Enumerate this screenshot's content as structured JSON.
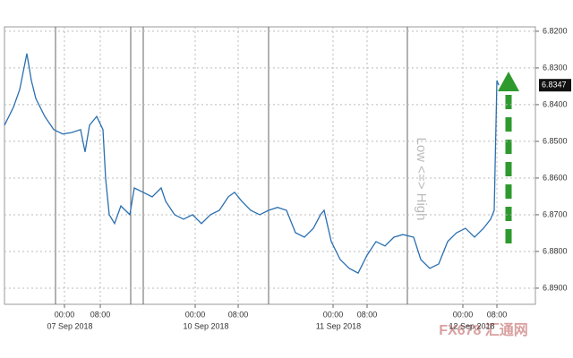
{
  "chart_data": {
    "type": "line",
    "y_inverted": true,
    "y_annotation": "Low <=> High",
    "watermark": "FX678 汇通网",
    "grid": true,
    "xlim": [
      0,
      118.6
    ],
    "ylim": [
      6.8188,
      6.8944
    ],
    "xticks": [
      {
        "value": 13.4,
        "label": "00:00"
      },
      {
        "value": 21.4,
        "label": "08:00"
      },
      {
        "value": 42.6,
        "label": "00:00"
      },
      {
        "value": 52.2,
        "label": "08:00"
      },
      {
        "value": 73.4,
        "label": "00:00"
      },
      {
        "value": 81,
        "label": "08:00"
      },
      {
        "value": 102.4,
        "label": "00:00"
      },
      {
        "value": 110,
        "label": "08:00"
      }
    ],
    "date_labels": [
      {
        "value": 14.6,
        "label": "07 Sep 2018"
      },
      {
        "value": 45,
        "label": "10 Sep 2018"
      },
      {
        "value": 74.6,
        "label": "11 Sep 2018"
      },
      {
        "value": 104.4,
        "label": "12 Sep 2018"
      }
    ],
    "yticks": [
      {
        "value": 6.82,
        "label": "6.8200"
      },
      {
        "value": 6.83,
        "label": "6.8300"
      },
      {
        "value": 6.84,
        "label": "6.8400"
      },
      {
        "value": 6.85,
        "label": "6.8500"
      },
      {
        "value": 6.86,
        "label": "6.8600"
      },
      {
        "value": 6.87,
        "label": "6.8700"
      },
      {
        "value": 6.88,
        "label": "6.8800"
      },
      {
        "value": 6.89,
        "label": "6.8900"
      }
    ],
    "last_value": {
      "value": 6.8347,
      "label": "6.8347"
    },
    "series": [
      {
        "color": "#2a6fb0",
        "x": [
          0,
          2,
          3.4,
          5,
          6,
          7,
          9,
          11,
          13,
          15,
          17,
          18,
          19,
          20.6,
          22,
          22.6,
          23.4,
          24.6,
          26,
          28,
          29,
          31,
          33,
          35,
          36,
          38,
          40,
          42,
          44,
          46,
          48,
          50,
          51.4,
          53,
          55,
          57,
          59,
          61,
          63,
          65,
          67,
          69,
          70.6,
          71.4,
          73,
          75,
          77,
          79,
          81,
          83,
          85,
          87,
          89,
          91.4,
          93,
          95,
          97,
          99,
          101,
          103,
          105,
          107,
          108.6,
          109.4,
          110,
          110.4
        ],
        "values": [
          6.8456,
          6.8407,
          6.8359,
          6.8261,
          6.8334,
          6.8383,
          6.8432,
          6.8468,
          6.848,
          6.8476,
          6.8468,
          6.8529,
          6.8456,
          6.8432,
          6.8468,
          6.8602,
          6.87,
          6.8724,
          6.8676,
          6.87,
          6.8627,
          6.8639,
          6.8651,
          6.8627,
          6.8663,
          6.87,
          6.8712,
          6.87,
          6.8724,
          6.87,
          6.8688,
          6.8651,
          6.8639,
          6.8663,
          6.8688,
          6.87,
          6.8688,
          6.868,
          6.8688,
          6.8749,
          6.8761,
          6.8737,
          6.87,
          6.8688,
          6.8773,
          6.8822,
          6.8846,
          6.8859,
          6.881,
          6.8773,
          6.8785,
          6.8761,
          6.8754,
          6.8761,
          6.8822,
          6.8846,
          6.8834,
          6.8773,
          6.8749,
          6.8737,
          6.8761,
          6.8737,
          6.8712,
          6.8688,
          6.8334,
          6.8347
        ]
      }
    ]
  }
}
